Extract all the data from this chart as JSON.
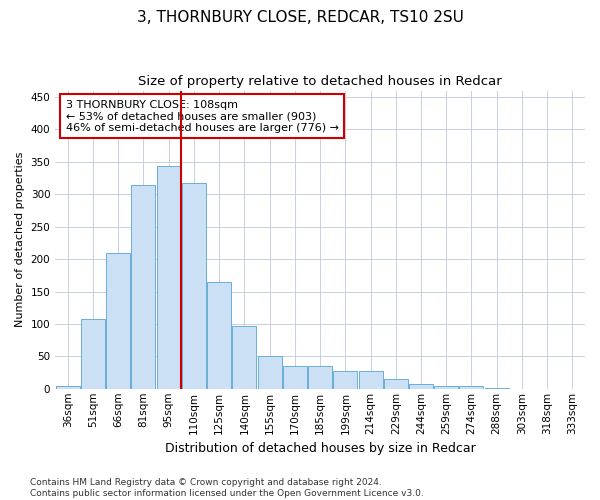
{
  "title": "3, THORNBURY CLOSE, REDCAR, TS10 2SU",
  "subtitle": "Size of property relative to detached houses in Redcar",
  "xlabel": "Distribution of detached houses by size in Redcar",
  "ylabel": "Number of detached properties",
  "categories": [
    "36sqm",
    "51sqm",
    "66sqm",
    "81sqm",
    "95sqm",
    "110sqm",
    "125sqm",
    "140sqm",
    "155sqm",
    "170sqm",
    "185sqm",
    "199sqm",
    "214sqm",
    "229sqm",
    "244sqm",
    "259sqm",
    "274sqm",
    "288sqm",
    "303sqm",
    "318sqm",
    "333sqm"
  ],
  "values": [
    5,
    107,
    210,
    315,
    343,
    318,
    165,
    97,
    50,
    35,
    35,
    28,
    28,
    15,
    8,
    4,
    5,
    1,
    0,
    0,
    0
  ],
  "bar_color": "#cce0f5",
  "bar_edge_color": "#6aaed6",
  "grid_color": "#c8d0e0",
  "vline_index": 5,
  "vline_color": "#cc0000",
  "annotation_text": "3 THORNBURY CLOSE: 108sqm\n← 53% of detached houses are smaller (903)\n46% of semi-detached houses are larger (776) →",
  "annotation_box_color": "#ffffff",
  "annotation_box_edge": "#cc0000",
  "ylim": [
    0,
    460
  ],
  "yticks": [
    0,
    50,
    100,
    150,
    200,
    250,
    300,
    350,
    400,
    450
  ],
  "footnote": "Contains HM Land Registry data © Crown copyright and database right 2024.\nContains public sector information licensed under the Open Government Licence v3.0.",
  "title_fontsize": 11,
  "subtitle_fontsize": 9.5,
  "xlabel_fontsize": 9,
  "ylabel_fontsize": 8,
  "tick_fontsize": 7.5,
  "annotation_fontsize": 8,
  "footnote_fontsize": 6.5
}
